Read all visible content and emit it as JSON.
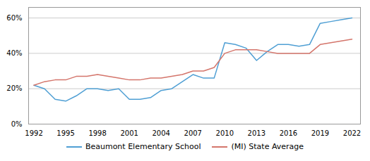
{
  "chart_data": {
    "type": "line",
    "x": [
      1992,
      1993,
      1994,
      1995,
      1996,
      1997,
      1998,
      1999,
      2000,
      2001,
      2002,
      2003,
      2004,
      2005,
      2006,
      2007,
      2008,
      2009,
      2010,
      2011,
      2012,
      2013,
      2014,
      2015,
      2016,
      2017,
      2018,
      2019,
      2020,
      2021,
      2022
    ],
    "series": [
      {
        "name": "Beaumont Elementary School",
        "color": "#4f9fd4",
        "values": [
          0.22,
          0.2,
          0.14,
          0.13,
          0.16,
          0.2,
          0.2,
          0.19,
          0.2,
          0.14,
          0.14,
          0.15,
          0.19,
          0.2,
          0.24,
          0.28,
          0.26,
          0.26,
          0.46,
          0.45,
          0.43,
          0.36,
          0.41,
          0.45,
          0.45,
          0.44,
          0.45,
          0.57,
          0.58,
          0.59,
          0.6
        ]
      },
      {
        "name": "(MI) State Average",
        "color": "#d4756b",
        "values": [
          0.22,
          0.24,
          0.25,
          0.25,
          0.27,
          0.27,
          0.28,
          0.27,
          0.26,
          0.25,
          0.25,
          0.26,
          0.26,
          0.27,
          0.28,
          0.3,
          0.3,
          0.32,
          0.4,
          0.42,
          0.42,
          0.42,
          0.41,
          0.4,
          0.4,
          0.4,
          0.4,
          0.45,
          0.46,
          0.47,
          0.48
        ]
      }
    ],
    "xlim": [
      1991.5,
      2022.8
    ],
    "xticks": [
      1992,
      1995,
      1998,
      2001,
      2004,
      2007,
      2010,
      2013,
      2016,
      2019,
      2022
    ],
    "ylim": [
      0.0,
      0.66
    ],
    "yticks": [
      {
        "value": 0.0,
        "label": "0%"
      },
      {
        "value": 0.2,
        "label": "20%"
      },
      {
        "value": 0.4,
        "label": "40%"
      },
      {
        "value": 0.6,
        "label": "60%"
      }
    ],
    "grid": "y",
    "legend": "bottom"
  }
}
